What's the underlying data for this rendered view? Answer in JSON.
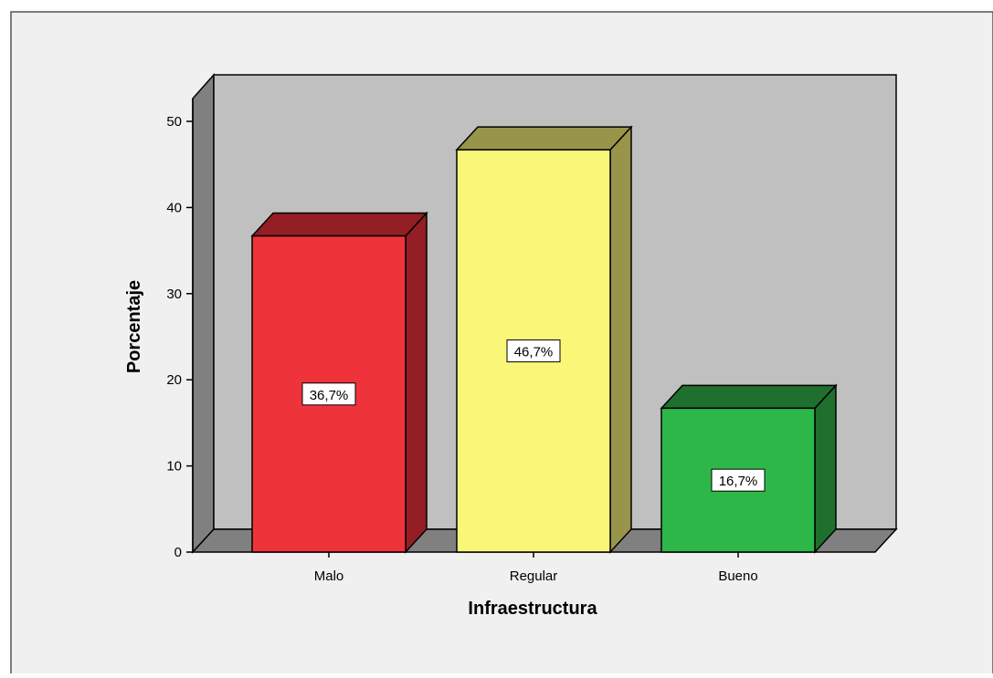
{
  "chart_data": {
    "type": "bar",
    "categories": [
      "Malo",
      "Regular",
      "Bueno"
    ],
    "values": [
      36.7,
      46.7,
      16.7
    ],
    "data_labels": [
      "36,7%",
      "46,7%",
      "16,7%"
    ],
    "xlabel": "Infraestructura",
    "ylabel": "Porcentaje",
    "ylim": [
      0,
      50
    ],
    "yticks": [
      "0",
      "10",
      "20",
      "30",
      "40",
      "50"
    ],
    "grid": false,
    "style": "3d",
    "colors": {
      "Malo": {
        "front": "#ef333a",
        "side": "#931e23"
      },
      "Regular": {
        "front": "#faf778",
        "side": "#98954b"
      },
      "Bueno": {
        "front": "#2eb749",
        "side": "#1f6f2e"
      },
      "plot_background": "#c0c0c0",
      "wall_side": "#808080",
      "frame_background": "#f0f0f0"
    }
  }
}
